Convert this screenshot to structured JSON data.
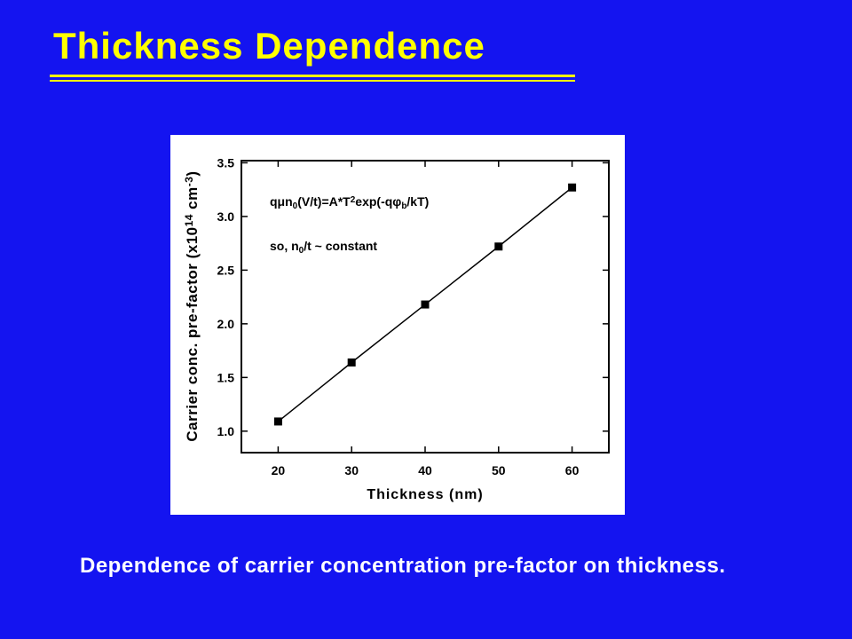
{
  "chart_data": {
    "type": "line",
    "title": "Thickness Dependence",
    "caption": "Dependence of carrier concentration pre-factor on thickness.",
    "x_label": "Thickness (nm)",
    "y_label": [
      "Carrier conc. pre-factor (x10",
      "14",
      " cm",
      "-3",
      ")"
    ],
    "y_label_styles": [
      "normal",
      "sup",
      "normal",
      "sup",
      "normal"
    ],
    "annotations": [
      {
        "parts": [
          "qμn",
          "0",
          "(V/t)=A*T",
          "2",
          "exp(-qφ",
          "b",
          "/kT)"
        ],
        "styles": [
          "normal",
          "sub",
          "normal",
          "sup",
          "normal",
          "sub",
          "normal"
        ]
      },
      {
        "parts": [
          "so, n",
          "0",
          "/t ~ constant"
        ],
        "styles": [
          "normal",
          "sub",
          "normal"
        ]
      }
    ],
    "x": [
      20,
      30,
      40,
      50,
      60
    ],
    "series": [
      {
        "color": "#000000",
        "values": [
          1.09,
          1.64,
          2.18,
          2.72,
          3.27
        ]
      }
    ],
    "xlim": [
      15,
      65
    ],
    "xticks": [
      20,
      30,
      40,
      50,
      60
    ],
    "ylim": [
      0.8,
      3.52
    ],
    "yticks": [
      {
        "value": 1,
        "label": "1.0"
      },
      1.5,
      {
        "value": 2,
        "label": "2.0"
      },
      2.5,
      {
        "value": 3,
        "label": "3.0"
      },
      3.5
    ]
  }
}
